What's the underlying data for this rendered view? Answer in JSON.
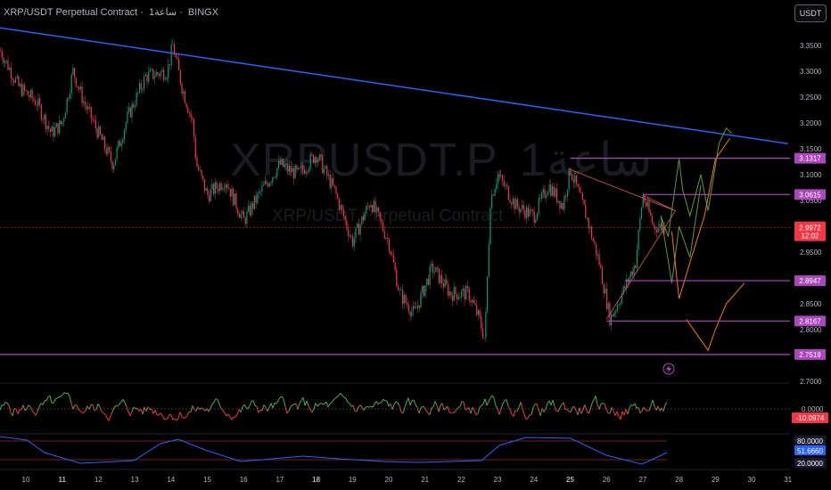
{
  "header": {
    "symbol_title": "XRP/USDT Perpetual Contract",
    "interval": "1ساعة",
    "exchange": "BINGX",
    "currency_button": "USDT"
  },
  "watermark": {
    "ticker": "XRPUSDT.P, 1ساعة",
    "description": "XRP/USDT Perpetual Contract"
  },
  "colors": {
    "background": "#000000",
    "up_candle": "#089981",
    "down_candle": "#f23645",
    "trendline": "#2962ff",
    "level_line": "#ab47bc",
    "current_price_label": "#f23645",
    "rsi_line": "#2962ff",
    "oscillator_up": "#4caf50",
    "oscillator_down": "#f23645",
    "projection_green": "#5d9b3d",
    "projection_orange": "#f57c00"
  },
  "chart_data": [
    {
      "type": "candlestick",
      "symbol": "XRP/USDT",
      "interval": "1h",
      "x_tick_labels": [
        "10",
        "11",
        "12",
        "13",
        "14",
        "15",
        "16",
        "17",
        "18",
        "19",
        "20",
        "21",
        "22",
        "23",
        "24",
        "25",
        "26",
        "27",
        "28",
        "29",
        "30",
        "31"
      ],
      "y_tick_labels": [
        "3.3500",
        "3.3000",
        "3.2500",
        "3.2000",
        "3.1500",
        "3.1000",
        "3.0500",
        "2.9500",
        "2.9000",
        "2.8500",
        "2.8000",
        "2.7000"
      ],
      "ylim": [
        2.7,
        3.38
      ],
      "close_path": [
        {
          "day": 9.3,
          "price": 3.34
        },
        {
          "day": 9.8,
          "price": 3.27
        },
        {
          "day": 10.3,
          "price": 3.24
        },
        {
          "day": 10.7,
          "price": 3.18
        },
        {
          "day": 11.0,
          "price": 3.2
        },
        {
          "day": 11.3,
          "price": 3.3
        },
        {
          "day": 11.6,
          "price": 3.24
        },
        {
          "day": 12.0,
          "price": 3.18
        },
        {
          "day": 12.4,
          "price": 3.12
        },
        {
          "day": 12.8,
          "price": 3.21
        },
        {
          "day": 13.3,
          "price": 3.29
        },
        {
          "day": 13.9,
          "price": 3.3
        },
        {
          "day": 14.05,
          "price": 3.35
        },
        {
          "day": 14.3,
          "price": 3.27
        },
        {
          "day": 14.6,
          "price": 3.2
        },
        {
          "day": 14.7,
          "price": 3.12
        },
        {
          "day": 15.0,
          "price": 3.06
        },
        {
          "day": 15.5,
          "price": 3.09
        },
        {
          "day": 16.0,
          "price": 3.01
        },
        {
          "day": 16.5,
          "price": 3.07
        },
        {
          "day": 17.0,
          "price": 3.12
        },
        {
          "day": 17.5,
          "price": 3.1
        },
        {
          "day": 18.0,
          "price": 3.14
        },
        {
          "day": 18.5,
          "price": 3.07
        },
        {
          "day": 19.0,
          "price": 2.97
        },
        {
          "day": 19.5,
          "price": 3.05
        },
        {
          "day": 20.0,
          "price": 2.97
        },
        {
          "day": 20.3,
          "price": 2.87
        },
        {
          "day": 20.7,
          "price": 2.83
        },
        {
          "day": 21.2,
          "price": 2.92
        },
        {
          "day": 21.7,
          "price": 2.87
        },
        {
          "day": 22.2,
          "price": 2.87
        },
        {
          "day": 22.5,
          "price": 2.82
        },
        {
          "day": 22.65,
          "price": 2.78
        },
        {
          "day": 22.8,
          "price": 3.05
        },
        {
          "day": 23.0,
          "price": 3.1
        },
        {
          "day": 23.5,
          "price": 3.04
        },
        {
          "day": 24.0,
          "price": 3.02
        },
        {
          "day": 24.4,
          "price": 3.08
        },
        {
          "day": 24.8,
          "price": 3.04
        },
        {
          "day": 25.0,
          "price": 3.11
        },
        {
          "day": 25.4,
          "price": 3.03
        },
        {
          "day": 25.8,
          "price": 2.93
        },
        {
          "day": 26.1,
          "price": 2.82
        },
        {
          "day": 26.5,
          "price": 2.88
        },
        {
          "day": 26.8,
          "price": 2.93
        },
        {
          "day": 27.0,
          "price": 3.06
        },
        {
          "day": 27.3,
          "price": 3.0
        },
        {
          "day": 27.6,
          "price": 2.998
        }
      ],
      "current_price": {
        "value": "2.9972",
        "countdown": "12:02",
        "price": 2.9972
      },
      "horizontal_levels": [
        {
          "label": "3.1317",
          "price": 3.1317,
          "start_day": 25.0
        },
        {
          "label": "3.0615",
          "price": 3.0615,
          "start_day": 27.0
        },
        {
          "label": "2.8947",
          "price": 2.8947,
          "start_day": 26.5
        },
        {
          "label": "2.8167",
          "price": 2.8167,
          "start_day": 26.0
        },
        {
          "label": "2.7519",
          "price": 2.7519,
          "start_day": 9.1
        }
      ],
      "trendline": {
        "start": {
          "day": 9.2,
          "price": 3.385
        },
        "end": {
          "day": 31.0,
          "price": 3.16
        }
      },
      "triangle_drawing": [
        {
          "day": 25.0,
          "price": 3.11
        },
        {
          "day": 27.9,
          "price": 3.03
        },
        {
          "day": 27.0,
          "price": 3.06
        },
        {
          "day": 27.9,
          "price": 3.03
        },
        {
          "day": 26.0,
          "price": 2.82
        }
      ],
      "projection_green": [
        {
          "day": 27.5,
          "price": 3.02
        },
        {
          "day": 27.7,
          "price": 2.98
        },
        {
          "day": 28.0,
          "price": 3.13
        },
        {
          "day": 28.1,
          "price": 3.07
        },
        {
          "day": 28.3,
          "price": 3.02
        },
        {
          "day": 28.6,
          "price": 3.1
        },
        {
          "day": 28.8,
          "price": 3.03
        },
        {
          "day": 29.1,
          "price": 3.16
        },
        {
          "day": 29.3,
          "price": 3.19
        },
        {
          "day": 29.45,
          "price": 3.18
        }
      ],
      "projection_green_2": [
        {
          "day": 27.5,
          "price": 3.02
        },
        {
          "day": 27.8,
          "price": 2.89
        },
        {
          "day": 28.0,
          "price": 3.0
        },
        {
          "day": 28.3,
          "price": 2.94
        },
        {
          "day": 28.6,
          "price": 3.08
        }
      ],
      "projection_orange": [
        {
          "day": 27.8,
          "price": 2.99
        },
        {
          "day": 28.0,
          "price": 2.86
        },
        {
          "day": 28.3,
          "price": 2.93
        },
        {
          "day": 28.7,
          "price": 3.02
        },
        {
          "day": 29.0,
          "price": 3.13
        },
        {
          "day": 29.4,
          "price": 3.17
        }
      ],
      "projection_orange_2": [
        {
          "day": 28.2,
          "price": 2.82
        },
        {
          "day": 28.5,
          "price": 2.79
        },
        {
          "day": 28.8,
          "price": 2.76
        },
        {
          "day": 29.0,
          "price": 2.8
        },
        {
          "day": 29.3,
          "price": 2.85
        },
        {
          "day": 29.8,
          "price": 2.89
        }
      ]
    },
    {
      "type": "line",
      "name": "oscillator",
      "current_value_label": "-10.0974",
      "zero_label": "0.0000",
      "current_value": -10.0974
    },
    {
      "type": "line",
      "name": "rsi",
      "upper_band_label": "80.0000",
      "current_value_label": "51.6660",
      "lower_band_label": "20.0000",
      "upper_band": 80,
      "lower_band": 20,
      "current_value": 51.666
    }
  ]
}
